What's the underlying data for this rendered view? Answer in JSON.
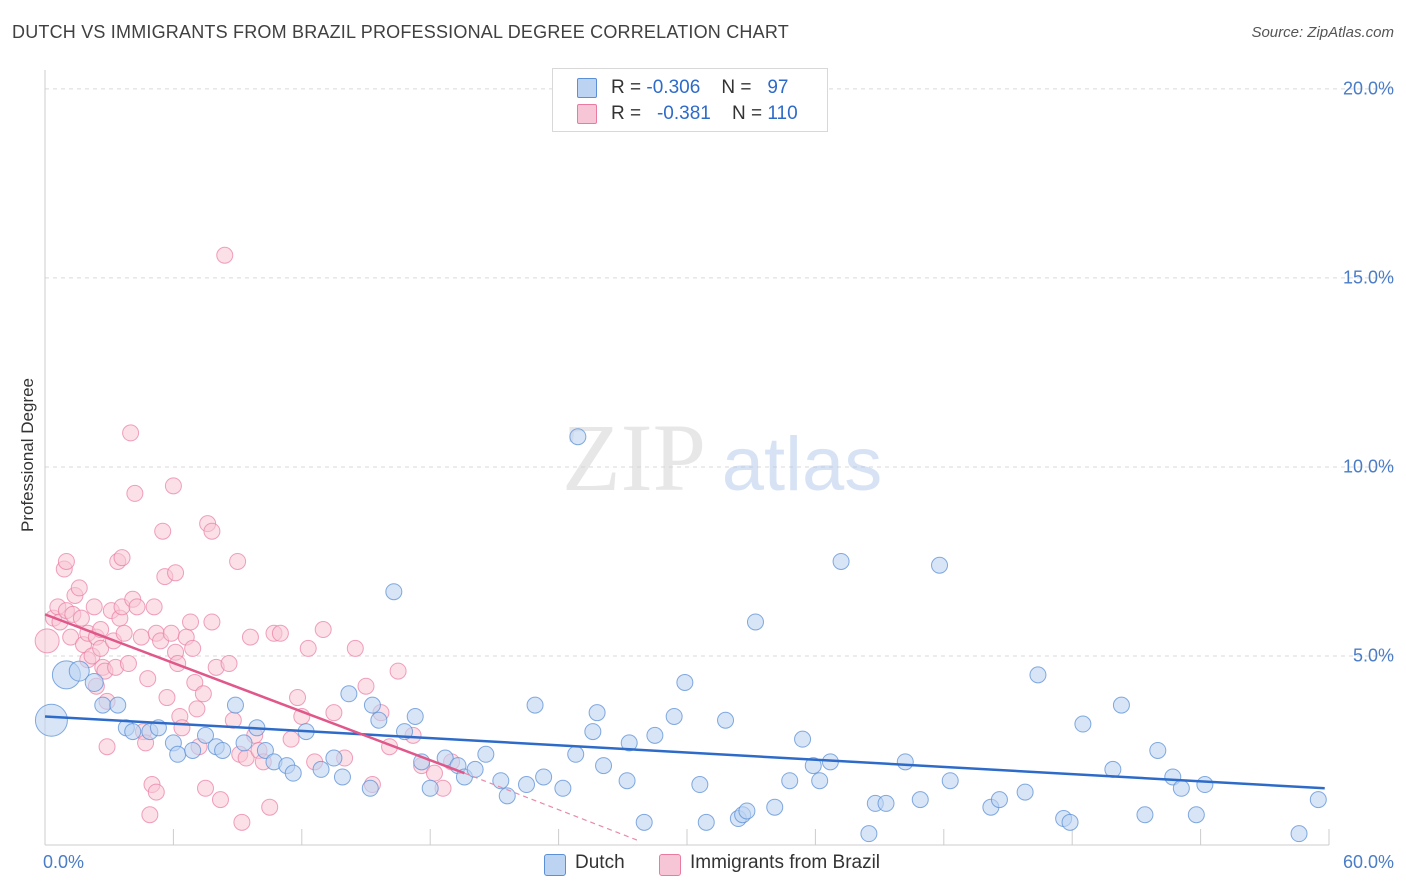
{
  "title": "DUTCH VS IMMIGRANTS FROM BRAZIL PROFESSIONAL DEGREE CORRELATION CHART",
  "source": "Source: ZipAtlas.com",
  "watermark": {
    "zip": "ZIP",
    "atlas": "atlas"
  },
  "colors": {
    "dutch": "#5b8fd6",
    "brazil": "#e97ba1",
    "dutch_fill": "#bcd3f2",
    "brazil_fill": "#f7c6d6",
    "tick_text": "#4a7cc7"
  },
  "legend": {
    "dutch": {
      "r_label": "R =",
      "r_value": "-0.306",
      "n_label": "N =",
      "n_value": "97"
    },
    "brazil": {
      "r_label": "R =",
      "r_value": "-0.381",
      "n_label": "N =",
      "n_value": "110"
    }
  },
  "bottom_legend": {
    "dutch": "Dutch",
    "brazil": "Immigrants from Brazil"
  },
  "chart_data": {
    "type": "scatter",
    "title": "DUTCH VS IMMIGRANTS FROM BRAZIL PROFESSIONAL DEGREE CORRELATION CHART",
    "xlabel": "",
    "ylabel": "Professional Degree",
    "xlim": [
      0,
      60
    ],
    "ylim": [
      0,
      20.5
    ],
    "x_tick_labels": [
      "0.0%",
      "60.0%"
    ],
    "y_ticks": [
      5,
      10,
      15,
      20
    ],
    "y_tick_labels": [
      "5.0%",
      "10.0%",
      "15.0%",
      "20.0%"
    ],
    "grid": true,
    "series": [
      {
        "name": "Dutch",
        "r": -0.306,
        "n": 97,
        "trend": {
          "x0": 0,
          "y0": 3.4,
          "x1": 59.8,
          "y1": 1.5
        },
        "points": [
          [
            0.3,
            3.3,
            16
          ],
          [
            1.0,
            4.5,
            14
          ],
          [
            1.6,
            4.6,
            10
          ],
          [
            2.3,
            4.3,
            9
          ],
          [
            2.7,
            3.7,
            8
          ],
          [
            3.4,
            3.7,
            8
          ],
          [
            3.8,
            3.1,
            8
          ],
          [
            4.1,
            3.0,
            8
          ],
          [
            4.9,
            3.0,
            8
          ],
          [
            5.3,
            3.1,
            8
          ],
          [
            6.0,
            2.7,
            8
          ],
          [
            6.2,
            2.4,
            8
          ],
          [
            6.9,
            2.5,
            8
          ],
          [
            7.5,
            2.9,
            8
          ],
          [
            8.0,
            2.6,
            8
          ],
          [
            8.3,
            2.5,
            8
          ],
          [
            8.9,
            3.7,
            8
          ],
          [
            9.3,
            2.7,
            8
          ],
          [
            9.9,
            3.1,
            8
          ],
          [
            10.3,
            2.5,
            8
          ],
          [
            10.7,
            2.2,
            8
          ],
          [
            11.3,
            2.1,
            8
          ],
          [
            11.6,
            1.9,
            8
          ],
          [
            12.2,
            3.0,
            8
          ],
          [
            12.9,
            2.0,
            8
          ],
          [
            13.5,
            2.3,
            8
          ],
          [
            13.9,
            1.8,
            8
          ],
          [
            14.2,
            4.0,
            8
          ],
          [
            15.2,
            1.5,
            8
          ],
          [
            15.3,
            3.7,
            8
          ],
          [
            15.6,
            3.3,
            8
          ],
          [
            16.3,
            6.7,
            8
          ],
          [
            16.8,
            3.0,
            8
          ],
          [
            17.3,
            3.4,
            8
          ],
          [
            17.6,
            2.2,
            8
          ],
          [
            18.0,
            1.5,
            8
          ],
          [
            18.7,
            2.3,
            8
          ],
          [
            19.3,
            2.1,
            8
          ],
          [
            19.6,
            1.8,
            8
          ],
          [
            20.1,
            2.0,
            8
          ],
          [
            20.6,
            2.4,
            8
          ],
          [
            21.3,
            1.7,
            8
          ],
          [
            21.6,
            1.3,
            8
          ],
          [
            22.5,
            1.6,
            8
          ],
          [
            22.9,
            3.7,
            8
          ],
          [
            23.3,
            1.8,
            8
          ],
          [
            24.2,
            1.5,
            8
          ],
          [
            24.8,
            2.4,
            8
          ],
          [
            24.9,
            10.8,
            8
          ],
          [
            25.6,
            3.0,
            8
          ],
          [
            25.8,
            3.5,
            8
          ],
          [
            26.1,
            2.1,
            8
          ],
          [
            27.2,
            1.7,
            8
          ],
          [
            27.3,
            2.7,
            8
          ],
          [
            28.0,
            0.6,
            8
          ],
          [
            28.5,
            2.9,
            8
          ],
          [
            29.4,
            3.4,
            8
          ],
          [
            29.9,
            4.3,
            8
          ],
          [
            30.6,
            1.6,
            8
          ],
          [
            30.9,
            0.6,
            8
          ],
          [
            31.8,
            3.3,
            8
          ],
          [
            32.4,
            0.7,
            8
          ],
          [
            32.6,
            0.8,
            8
          ],
          [
            32.8,
            0.9,
            8
          ],
          [
            33.2,
            5.9,
            8
          ],
          [
            34.1,
            1.0,
            8
          ],
          [
            34.8,
            1.7,
            8
          ],
          [
            35.4,
            2.8,
            8
          ],
          [
            35.9,
            2.1,
            8
          ],
          [
            36.2,
            1.7,
            8
          ],
          [
            36.7,
            2.2,
            8
          ],
          [
            37.2,
            7.5,
            8
          ],
          [
            38.5,
            0.3,
            8
          ],
          [
            38.8,
            1.1,
            8
          ],
          [
            39.3,
            1.1,
            8
          ],
          [
            40.2,
            2.2,
            8
          ],
          [
            40.9,
            1.2,
            8
          ],
          [
            41.8,
            7.4,
            8
          ],
          [
            42.3,
            1.7,
            8
          ],
          [
            44.2,
            1.0,
            8
          ],
          [
            44.6,
            1.2,
            8
          ],
          [
            45.8,
            1.4,
            8
          ],
          [
            46.4,
            4.5,
            8
          ],
          [
            47.6,
            0.7,
            8
          ],
          [
            47.9,
            0.6,
            8
          ],
          [
            48.5,
            3.2,
            8
          ],
          [
            49.9,
            2.0,
            8
          ],
          [
            50.3,
            3.7,
            8
          ],
          [
            51.4,
            0.8,
            8
          ],
          [
            52.0,
            2.5,
            8
          ],
          [
            52.7,
            1.8,
            8
          ],
          [
            53.1,
            1.5,
            8
          ],
          [
            53.8,
            0.8,
            8
          ],
          [
            54.2,
            1.6,
            8
          ],
          [
            58.6,
            0.3,
            8
          ],
          [
            59.5,
            1.2,
            8
          ]
        ]
      },
      {
        "name": "Immigrants from Brazil",
        "r": -0.381,
        "n": 110,
        "trend": {
          "x0": 0,
          "y0": 6.1,
          "x1": 19.6,
          "y1": 1.9
        },
        "trend_dashed": {
          "x0": 19.6,
          "y0": 1.9,
          "x1": 27.8,
          "y1": 0.1
        },
        "points": [
          [
            0.1,
            5.4,
            12
          ],
          [
            0.4,
            6.0,
            8
          ],
          [
            0.6,
            6.3,
            8
          ],
          [
            0.7,
            5.9,
            8
          ],
          [
            0.9,
            7.3,
            8
          ],
          [
            1.0,
            7.5,
            8
          ],
          [
            1.0,
            6.2,
            8
          ],
          [
            1.2,
            5.5,
            8
          ],
          [
            1.3,
            6.1,
            8
          ],
          [
            1.4,
            6.6,
            8
          ],
          [
            1.6,
            6.8,
            8
          ],
          [
            1.7,
            6.0,
            8
          ],
          [
            1.8,
            5.3,
            8
          ],
          [
            2.0,
            5.6,
            8
          ],
          [
            2.0,
            4.9,
            8
          ],
          [
            2.2,
            5.0,
            8
          ],
          [
            2.3,
            6.3,
            8
          ],
          [
            2.4,
            5.5,
            8
          ],
          [
            2.4,
            4.2,
            8
          ],
          [
            2.6,
            5.7,
            8
          ],
          [
            2.6,
            5.2,
            8
          ],
          [
            2.7,
            4.7,
            8
          ],
          [
            2.8,
            4.6,
            8
          ],
          [
            2.9,
            3.8,
            8
          ],
          [
            2.9,
            2.6,
            8
          ],
          [
            3.1,
            6.2,
            8
          ],
          [
            3.2,
            5.4,
            8
          ],
          [
            3.3,
            4.7,
            8
          ],
          [
            3.4,
            7.5,
            8
          ],
          [
            3.5,
            6.0,
            8
          ],
          [
            3.6,
            7.6,
            8
          ],
          [
            3.6,
            6.3,
            8
          ],
          [
            3.7,
            5.6,
            8
          ],
          [
            3.9,
            4.8,
            8
          ],
          [
            4.0,
            10.9,
            8
          ],
          [
            4.1,
            6.5,
            8
          ],
          [
            4.2,
            9.3,
            8
          ],
          [
            4.3,
            6.3,
            8
          ],
          [
            4.5,
            5.5,
            8
          ],
          [
            4.6,
            3.0,
            8
          ],
          [
            4.7,
            2.7,
            8
          ],
          [
            4.8,
            4.4,
            8
          ],
          [
            4.9,
            0.8,
            8
          ],
          [
            5.0,
            1.6,
            8
          ],
          [
            5.1,
            6.3,
            8
          ],
          [
            5.2,
            5.6,
            8
          ],
          [
            5.2,
            1.4,
            8
          ],
          [
            5.4,
            5.4,
            8
          ],
          [
            5.5,
            8.3,
            8
          ],
          [
            5.6,
            7.1,
            8
          ],
          [
            5.7,
            3.9,
            8
          ],
          [
            5.9,
            5.6,
            8
          ],
          [
            6.0,
            9.5,
            8
          ],
          [
            6.1,
            7.2,
            8
          ],
          [
            6.1,
            5.1,
            8
          ],
          [
            6.2,
            4.8,
            8
          ],
          [
            6.3,
            3.4,
            8
          ],
          [
            6.4,
            3.1,
            8
          ],
          [
            6.6,
            5.5,
            8
          ],
          [
            6.8,
            5.9,
            8
          ],
          [
            6.9,
            5.2,
            8
          ],
          [
            7.0,
            4.3,
            8
          ],
          [
            7.1,
            3.6,
            8
          ],
          [
            7.2,
            2.6,
            8
          ],
          [
            7.4,
            4.0,
            8
          ],
          [
            7.5,
            1.5,
            8
          ],
          [
            7.6,
            8.5,
            8
          ],
          [
            7.8,
            8.3,
            8
          ],
          [
            7.8,
            5.9,
            8
          ],
          [
            8.0,
            4.7,
            8
          ],
          [
            8.2,
            1.2,
            8
          ],
          [
            8.4,
            15.6,
            8
          ],
          [
            8.6,
            4.8,
            8
          ],
          [
            8.8,
            3.3,
            8
          ],
          [
            9.0,
            7.5,
            8
          ],
          [
            9.1,
            2.4,
            8
          ],
          [
            9.2,
            0.6,
            8
          ],
          [
            9.4,
            2.3,
            8
          ],
          [
            9.6,
            5.5,
            8
          ],
          [
            9.8,
            2.9,
            8
          ],
          [
            10.0,
            2.5,
            8
          ],
          [
            10.2,
            2.2,
            8
          ],
          [
            10.5,
            1.0,
            8
          ],
          [
            10.7,
            5.6,
            8
          ],
          [
            11.0,
            5.6,
            8
          ],
          [
            11.5,
            2.8,
            8
          ],
          [
            11.8,
            3.9,
            8
          ],
          [
            12.0,
            3.4,
            8
          ],
          [
            12.3,
            5.2,
            8
          ],
          [
            12.6,
            2.2,
            8
          ],
          [
            13.0,
            5.7,
            8
          ],
          [
            13.5,
            3.5,
            8
          ],
          [
            14.0,
            2.3,
            8
          ],
          [
            14.5,
            5.2,
            8
          ],
          [
            15.0,
            4.2,
            8
          ],
          [
            15.3,
            1.6,
            8
          ],
          [
            15.7,
            3.5,
            8
          ],
          [
            16.1,
            2.6,
            8
          ],
          [
            16.5,
            4.6,
            8
          ],
          [
            17.2,
            2.9,
            8
          ],
          [
            17.6,
            2.1,
            8
          ],
          [
            18.2,
            1.9,
            8
          ],
          [
            18.6,
            1.5,
            8
          ],
          [
            19.0,
            2.2,
            8
          ]
        ]
      }
    ]
  }
}
